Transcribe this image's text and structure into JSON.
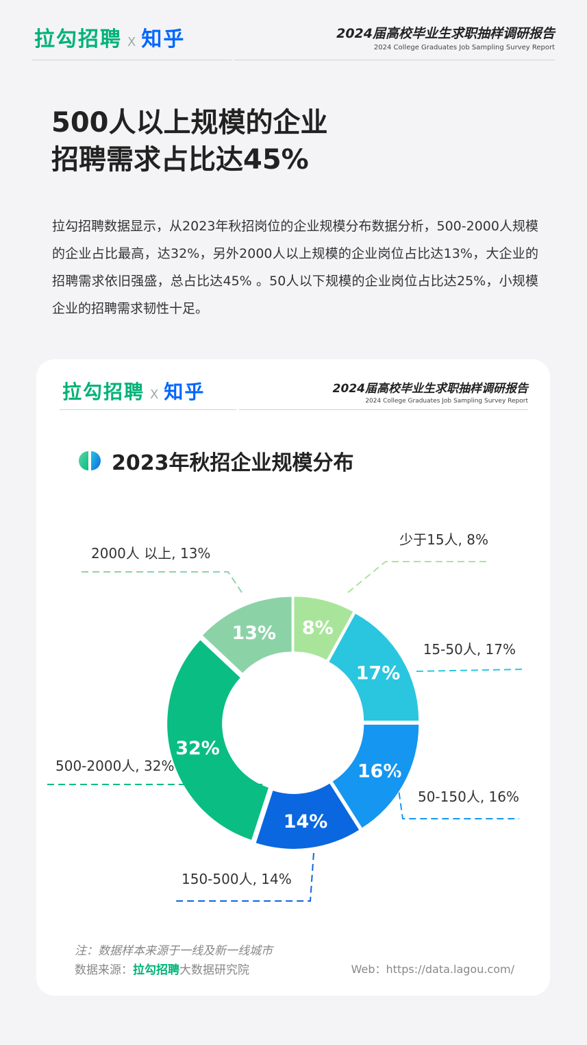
{
  "header": {
    "brand_lagou": "拉勾招聘",
    "brand_x": "X",
    "brand_zhihu": "知乎",
    "report_title_cn": "2024届高校毕业生求职抽样调研报告",
    "report_title_en": "2024 College Graduates Job Sampling Survey Report"
  },
  "page_title": [
    "500人以上规模的企业",
    "招聘需求占比达45%"
  ],
  "intro": "拉勾招聘数据显示，从2023年秋招岗位的企业规模分布数据分析，500-2000人规模的企业占比最高，达32%，另外2000人以上规模的企业岗位占比达13%，大企业的招聘需求依旧强盛，总占比达45% 。50人以下规模的企业岗位占比达25%，小规模企业的招聘需求韧性十足。",
  "card": {
    "brand_lagou": "拉勾招聘",
    "brand_x": "X",
    "brand_zhihu": "知乎",
    "report_title_cn": "2024届高校毕业生求职抽样调研报告",
    "report_title_en": "2024 College Graduates Job Sampling Survey Report",
    "note": "注：数据样本来源于一线及新一线城市",
    "source_prefix": "数据来源：",
    "source_brand": "拉勾招聘",
    "source_suffix": "大数据研究院",
    "web": "Web：https://data.lagou.com/"
  },
  "icon_name": "half-circles-logo-icon",
  "chart_data": {
    "type": "pie",
    "title": "2023年秋招企业规模分布",
    "donut": true,
    "unit": "%",
    "slices": [
      {
        "label": "少于15人",
        "value": 8,
        "color": "#a8e59a",
        "outer_label": "少于15人, 8%",
        "inner_label": "8%"
      },
      {
        "label": "15-50人",
        "value": 17,
        "color": "#2ac6e0",
        "outer_label": "15-50人, 17%",
        "inner_label": "17%"
      },
      {
        "label": "50-150人",
        "value": 16,
        "color": "#1596f0",
        "outer_label": "50-150人, 16%",
        "inner_label": "16%"
      },
      {
        "label": "150-500人",
        "value": 14,
        "color": "#0a67e0",
        "outer_label": "150-500人, 14%",
        "inner_label": "14%"
      },
      {
        "label": "500-2000人",
        "value": 32,
        "color": "#0abd83",
        "outer_label": "500-2000人, 32%",
        "inner_label": "32%"
      },
      {
        "label": "2000人以上",
        "value": 13,
        "color": "#8bd3a6",
        "outer_label": "2000人 以上, 13%",
        "inner_label": "13%"
      }
    ],
    "start_angle": "12 o'clock",
    "direction": "clockwise",
    "legend": "none"
  },
  "colors": {
    "lagou_green": "#00b277",
    "zhihu_blue": "#0066ff"
  }
}
